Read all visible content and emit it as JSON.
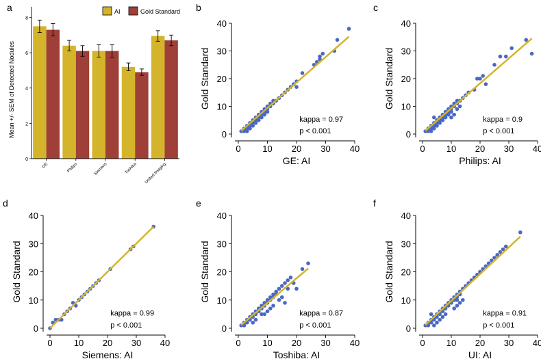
{
  "chart_data": [
    {
      "panel": "a",
      "type": "bar",
      "ylabel": "Mean +/- SEM of Detected Nodules",
      "xlabel": "",
      "ylim": [
        0,
        8.6
      ],
      "yticks": [
        0,
        2,
        4,
        6,
        8
      ],
      "categories": [
        "GE",
        "Philips",
        "Siemens",
        "Toshiba",
        "United Imaging"
      ],
      "series": [
        {
          "name": "AI",
          "color": "#d4b42a",
          "values": [
            7.5,
            6.4,
            6.1,
            5.2,
            6.95
          ],
          "sem": [
            0.35,
            0.3,
            0.35,
            0.22,
            0.3
          ]
        },
        {
          "name": "Gold Standard",
          "color": "#9e4038",
          "values": [
            7.3,
            6.1,
            6.1,
            4.9,
            6.7
          ],
          "sem": [
            0.35,
            0.3,
            0.35,
            0.18,
            0.3
          ]
        }
      ],
      "legend_position": "top-right"
    },
    {
      "panel": "b",
      "type": "scatter",
      "xlabel": "GE: AI",
      "ylabel": "Gold Standard",
      "xlim": [
        0,
        40
      ],
      "ylim": [
        0,
        40
      ],
      "ticks": [
        0,
        10,
        20,
        30,
        40
      ],
      "kappa_label": "kappa = 0.97",
      "p_label": "p < 0.001",
      "fit": {
        "slope": 0.92,
        "intercept": 0.2,
        "x_range": [
          1,
          38
        ]
      },
      "points": [
        [
          1,
          1
        ],
        [
          2,
          1
        ],
        [
          2,
          2
        ],
        [
          3,
          2
        ],
        [
          3,
          3
        ],
        [
          4,
          3
        ],
        [
          4,
          4
        ],
        [
          5,
          4
        ],
        [
          5,
          5
        ],
        [
          6,
          5
        ],
        [
          6,
          6
        ],
        [
          7,
          6
        ],
        [
          7,
          7
        ],
        [
          8,
          7
        ],
        [
          8,
          8
        ],
        [
          9,
          8
        ],
        [
          9,
          9
        ],
        [
          10,
          9
        ],
        [
          10,
          10
        ],
        [
          11,
          10
        ],
        [
          11,
          11
        ],
        [
          12,
          11
        ],
        [
          12,
          12
        ],
        [
          13,
          12
        ],
        [
          14,
          13
        ],
        [
          15,
          14
        ],
        [
          16,
          15
        ],
        [
          17,
          16
        ],
        [
          18,
          17
        ],
        [
          19,
          18
        ],
        [
          20,
          19
        ],
        [
          20,
          17
        ],
        [
          22,
          22
        ],
        [
          26,
          25
        ],
        [
          27,
          26
        ],
        [
          28,
          27
        ],
        [
          28,
          28
        ],
        [
          29,
          29
        ],
        [
          33,
          30
        ],
        [
          34,
          34
        ],
        [
          38,
          38
        ],
        [
          3,
          1
        ],
        [
          4,
          2
        ],
        [
          5,
          3
        ],
        [
          6,
          4
        ],
        [
          7,
          5
        ],
        [
          8,
          6
        ],
        [
          9,
          7
        ],
        [
          10,
          8
        ]
      ]
    },
    {
      "panel": "c",
      "type": "scatter",
      "xlabel": "Philips: AI",
      "ylabel": "Gold Standard",
      "xlim": [
        0,
        40
      ],
      "ylim": [
        0,
        40
      ],
      "ticks": [
        0,
        10,
        20,
        30,
        40
      ],
      "kappa_label": "kappa = 0.9",
      "p_label": "p < 0.001",
      "fit": {
        "slope": 0.9,
        "intercept": 0.3,
        "x_range": [
          1,
          38
        ]
      },
      "points": [
        [
          1,
          1
        ],
        [
          2,
          1
        ],
        [
          2,
          2
        ],
        [
          3,
          2
        ],
        [
          3,
          3
        ],
        [
          4,
          3
        ],
        [
          4,
          4
        ],
        [
          5,
          4
        ],
        [
          5,
          5
        ],
        [
          6,
          5
        ],
        [
          6,
          6
        ],
        [
          7,
          6
        ],
        [
          7,
          7
        ],
        [
          8,
          7
        ],
        [
          8,
          8
        ],
        [
          9,
          8
        ],
        [
          9,
          9
        ],
        [
          10,
          9
        ],
        [
          10,
          10
        ],
        [
          11,
          10
        ],
        [
          11,
          11
        ],
        [
          12,
          11
        ],
        [
          12,
          12
        ],
        [
          13,
          12
        ],
        [
          14,
          13
        ],
        [
          15,
          14
        ],
        [
          16,
          15
        ],
        [
          3,
          1
        ],
        [
          4,
          2
        ],
        [
          5,
          3
        ],
        [
          6,
          4
        ],
        [
          7,
          5
        ],
        [
          8,
          6
        ],
        [
          9,
          7
        ],
        [
          10,
          8
        ],
        [
          11,
          7
        ],
        [
          12,
          9
        ],
        [
          13,
          10
        ],
        [
          10,
          6
        ],
        [
          18,
          16
        ],
        [
          19,
          20
        ],
        [
          20,
          20
        ],
        [
          21,
          21
        ],
        [
          22,
          18
        ],
        [
          25,
          25
        ],
        [
          27,
          28
        ],
        [
          29,
          28
        ],
        [
          31,
          31
        ],
        [
          36,
          34
        ],
        [
          38,
          29
        ],
        [
          4,
          6
        ]
      ]
    },
    {
      "panel": "d",
      "type": "scatter",
      "xlabel": "Siemens: AI",
      "ylabel": "Gold Standard",
      "xlim": [
        0,
        40
      ],
      "ylim": [
        0,
        40
      ],
      "ticks": [
        0,
        10,
        20,
        30,
        40
      ],
      "kappa_label": "kappa = 0.99",
      "p_label": "p < 0.001",
      "fit": {
        "slope": 1.0,
        "intercept": 0.0,
        "x_range": [
          0,
          36
        ]
      },
      "points": [
        [
          0,
          0
        ],
        [
          1,
          2
        ],
        [
          2,
          3
        ],
        [
          3,
          3
        ],
        [
          4,
          3
        ],
        [
          5,
          5
        ],
        [
          6,
          6
        ],
        [
          7,
          7
        ],
        [
          8,
          9
        ],
        [
          9,
          8
        ],
        [
          10,
          10
        ],
        [
          11,
          11
        ],
        [
          12,
          12
        ],
        [
          13,
          13
        ],
        [
          14,
          14
        ],
        [
          15,
          15
        ],
        [
          16,
          16
        ],
        [
          17,
          17
        ],
        [
          21,
          21
        ],
        [
          28,
          28
        ],
        [
          29,
          29
        ],
        [
          36,
          36
        ]
      ]
    },
    {
      "panel": "e",
      "type": "scatter",
      "xlabel": "Toshiba: AI",
      "ylabel": "Gold Standard",
      "xlim": [
        0,
        40
      ],
      "ylim": [
        0,
        40
      ],
      "ticks": [
        0,
        10,
        20,
        30,
        40
      ],
      "kappa_label": "kappa = 0.87",
      "p_label": "p < 0.001",
      "fit": {
        "slope": 0.87,
        "intercept": 0.3,
        "x_range": [
          1,
          24
        ]
      },
      "points": [
        [
          1,
          1
        ],
        [
          2,
          1
        ],
        [
          2,
          2
        ],
        [
          3,
          2
        ],
        [
          3,
          3
        ],
        [
          4,
          3
        ],
        [
          4,
          4
        ],
        [
          5,
          4
        ],
        [
          5,
          5
        ],
        [
          6,
          5
        ],
        [
          6,
          6
        ],
        [
          7,
          6
        ],
        [
          7,
          7
        ],
        [
          8,
          7
        ],
        [
          8,
          8
        ],
        [
          9,
          8
        ],
        [
          9,
          9
        ],
        [
          10,
          9
        ],
        [
          10,
          10
        ],
        [
          11,
          10
        ],
        [
          11,
          11
        ],
        [
          12,
          11
        ],
        [
          12,
          12
        ],
        [
          13,
          12
        ],
        [
          13,
          13
        ],
        [
          14,
          14
        ],
        [
          15,
          15
        ],
        [
          16,
          16
        ],
        [
          17,
          17
        ],
        [
          18,
          18
        ],
        [
          6,
          3
        ],
        [
          8,
          5
        ],
        [
          10,
          6
        ],
        [
          11,
          7
        ],
        [
          12,
          8
        ],
        [
          14,
          10
        ],
        [
          15,
          11
        ],
        [
          16,
          9
        ],
        [
          17,
          14
        ],
        [
          19,
          16
        ],
        [
          20,
          14
        ],
        [
          22,
          21
        ],
        [
          24,
          23
        ],
        [
          9,
          5
        ],
        [
          5,
          2
        ]
      ]
    },
    {
      "panel": "f",
      "type": "scatter",
      "xlabel": "UI: AI",
      "ylabel": "Gold Standard",
      "xlim": [
        0,
        40
      ],
      "ylim": [
        0,
        40
      ],
      "ticks": [
        0,
        10,
        20,
        30,
        40
      ],
      "kappa_label": "kappa = 0.91",
      "p_label": "p < 0.001",
      "fit": {
        "slope": 0.95,
        "intercept": 0.2,
        "x_range": [
          1,
          34
        ]
      },
      "points": [
        [
          1,
          1
        ],
        [
          2,
          1
        ],
        [
          2,
          2
        ],
        [
          3,
          2
        ],
        [
          3,
          3
        ],
        [
          4,
          3
        ],
        [
          4,
          4
        ],
        [
          5,
          4
        ],
        [
          5,
          5
        ],
        [
          6,
          5
        ],
        [
          6,
          6
        ],
        [
          7,
          6
        ],
        [
          7,
          7
        ],
        [
          8,
          7
        ],
        [
          8,
          8
        ],
        [
          9,
          8
        ],
        [
          9,
          9
        ],
        [
          10,
          9
        ],
        [
          10,
          10
        ],
        [
          11,
          10
        ],
        [
          11,
          11
        ],
        [
          12,
          11
        ],
        [
          12,
          12
        ],
        [
          13,
          12
        ],
        [
          13,
          13
        ],
        [
          14,
          14
        ],
        [
          15,
          15
        ],
        [
          16,
          16
        ],
        [
          17,
          17
        ],
        [
          18,
          18
        ],
        [
          19,
          19
        ],
        [
          20,
          20
        ],
        [
          21,
          21
        ],
        [
          22,
          22
        ],
        [
          23,
          23
        ],
        [
          24,
          24
        ],
        [
          25,
          25
        ],
        [
          26,
          26
        ],
        [
          27,
          27
        ],
        [
          28,
          28
        ],
        [
          29,
          29
        ],
        [
          34,
          34
        ],
        [
          3,
          5
        ],
        [
          4,
          1
        ],
        [
          5,
          2
        ],
        [
          6,
          3
        ],
        [
          7,
          4
        ],
        [
          8,
          5
        ],
        [
          11,
          7
        ],
        [
          12,
          8
        ],
        [
          12,
          10
        ],
        [
          13,
          9
        ],
        [
          14,
          10
        ]
      ]
    }
  ],
  "colors": {
    "point": "#4a67c4",
    "fit_line": "#d4b42a",
    "axis": "#000000"
  }
}
